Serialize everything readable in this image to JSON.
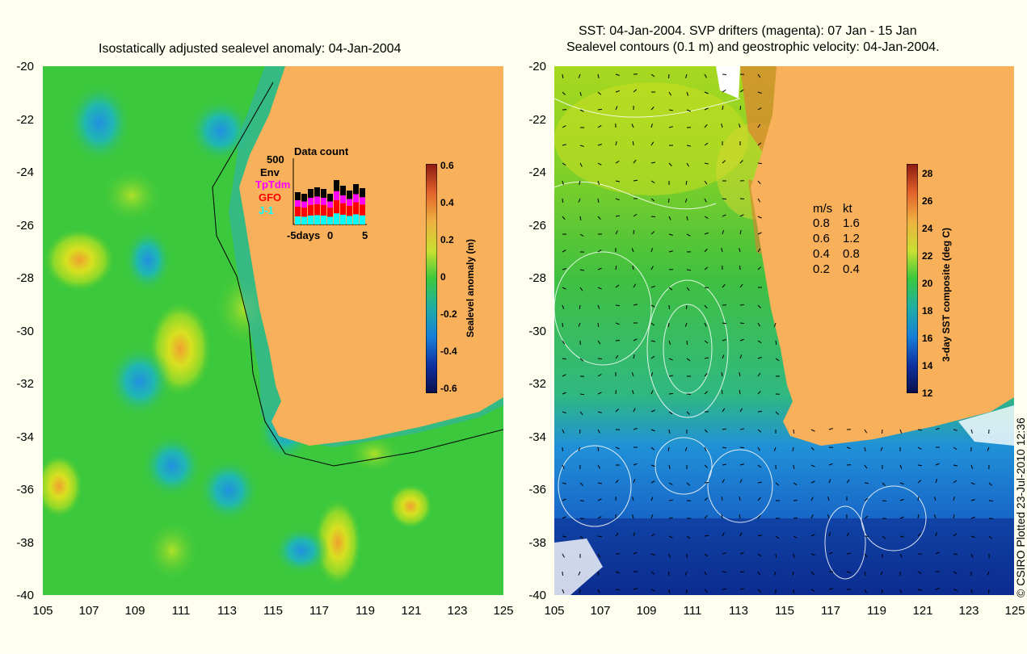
{
  "left_panel": {
    "title": "Isostatically adjusted sealevel anomaly: 04-Jan-2004",
    "y_ticks": [
      "-20",
      "-22",
      "-24",
      "-26",
      "-28",
      "-30",
      "-32",
      "-34",
      "-36",
      "-38",
      "-40"
    ],
    "x_ticks": [
      "105",
      "107",
      "109",
      "111",
      "113",
      "115",
      "117",
      "119",
      "121",
      "123",
      "125"
    ],
    "colorbar": {
      "label": "Sealevel anomaly (m)",
      "ticks": [
        "0.6",
        "0.4",
        "0.2",
        "0",
        "-0.2",
        "-0.4",
        "-0.6"
      ]
    },
    "inset": {
      "title": "Data count",
      "y_label": "500",
      "legend": [
        "Env",
        "TpTdm",
        "GFO",
        "J-1"
      ],
      "legend_colors": [
        "#000000",
        "#ff00ff",
        "#ff0000",
        "#00ffff"
      ],
      "x_labels": [
        "-5days",
        "0",
        "5"
      ]
    }
  },
  "right_panel": {
    "title_line1": "SST: 04-Jan-2004. SVP drifters (magenta): 07 Jan - 15 Jan",
    "title_line2": "Sealevel contours (0.1 m) and geostrophic velocity: 04-Jan-2004.",
    "y_ticks": [
      "-20",
      "-22",
      "-24",
      "-26",
      "-28",
      "-30",
      "-32",
      "-34",
      "-36",
      "-38",
      "-40"
    ],
    "x_ticks": [
      "105",
      "107",
      "109",
      "111",
      "113",
      "115",
      "117",
      "119",
      "121",
      "123",
      "125"
    ],
    "colorbar": {
      "label": "3-day SST composite (deg C)",
      "ticks": [
        "28",
        "26",
        "24",
        "22",
        "20",
        "18",
        "16",
        "14",
        "12"
      ]
    },
    "velocity_legend": {
      "header_ms": "m/s",
      "header_kt": "kt",
      "rows": [
        {
          "ms": "0.8",
          "kt": "1.6"
        },
        {
          "ms": "0.6",
          "kt": "1.2"
        },
        {
          "ms": "0.4",
          "kt": "0.8"
        },
        {
          "ms": "0.2",
          "kt": "0.4"
        }
      ]
    }
  },
  "credit": "© CSIRO Plotted 23-Jul-2010 12:36",
  "colors": {
    "land": "#f9b05a",
    "background": "#ffffef",
    "ocean_green": "#3cc83c"
  }
}
